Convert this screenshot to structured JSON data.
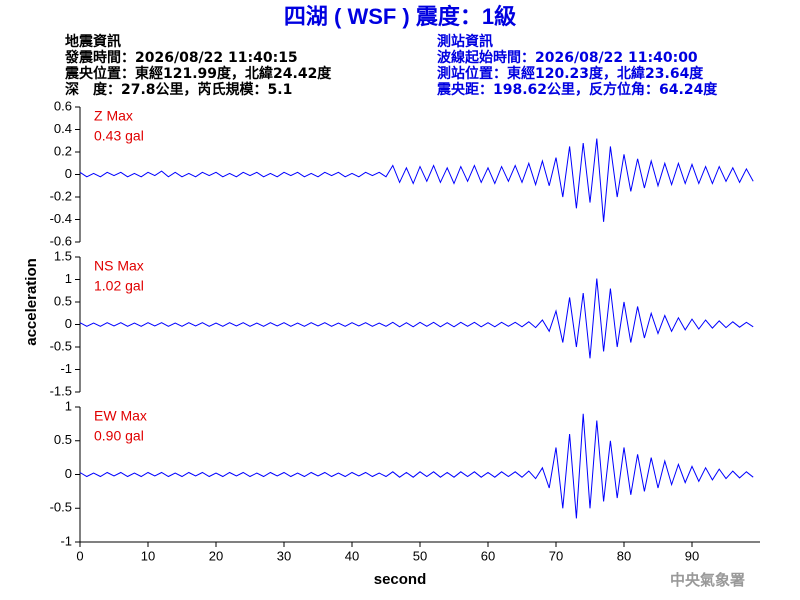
{
  "header": {
    "left": [
      "地震資訊",
      "發震時間：2026/08/22 11:40:15",
      "震央位置：東經121.99度，北緯24.42度",
      "深　度：27.8公里，芮氏規模：5.1"
    ],
    "right": [
      "測站資訊",
      "波線起始時間：2026/08/22 11:40:00",
      "測站位置：東經120.23度，北緯23.64度",
      "震央距：198.62公里，反方位角：64.24度"
    ],
    "footer": "中央氣象署"
  },
  "chart_data": {
    "type": "line",
    "title": "四湖 ( WSF ) 震度：1級",
    "xlabel": "second",
    "ylabel": "acceleration",
    "xlim": [
      0,
      100
    ],
    "xticks": [
      0,
      10,
      20,
      30,
      40,
      50,
      60,
      70,
      80,
      90
    ],
    "x": [
      0,
      1,
      2,
      3,
      4,
      5,
      6,
      7,
      8,
      9,
      10,
      11,
      12,
      13,
      14,
      15,
      16,
      17,
      18,
      19,
      20,
      21,
      22,
      23,
      24,
      25,
      26,
      27,
      28,
      29,
      30,
      31,
      32,
      33,
      34,
      35,
      36,
      37,
      38,
      39,
      40,
      41,
      42,
      43,
      44,
      45,
      46,
      47,
      48,
      49,
      50,
      51,
      52,
      53,
      54,
      55,
      56,
      57,
      58,
      59,
      60,
      61,
      62,
      63,
      64,
      65,
      66,
      67,
      68,
      69,
      70,
      71,
      72,
      73,
      74,
      75,
      76,
      77,
      78,
      79,
      80,
      81,
      82,
      83,
      84,
      85,
      86,
      87,
      88,
      89,
      90,
      91,
      92,
      93,
      94,
      95,
      96,
      97,
      98,
      99
    ],
    "series": [
      {
        "name": "Z Max",
        "annotation": "0.43 gal",
        "color": "#0000ff",
        "ylim": [
          -0.6,
          0.6
        ],
        "yticks": [
          0.6,
          0.4,
          0.2,
          0,
          -0.2,
          -0.4,
          -0.6
        ],
        "values": [
          0.02,
          -0.02,
          0.01,
          -0.02,
          0.02,
          -0.01,
          0.02,
          -0.02,
          0.01,
          -0.02,
          0.02,
          -0.01,
          0.03,
          -0.02,
          0.02,
          -0.02,
          0.01,
          -0.02,
          0.02,
          -0.01,
          0.02,
          -0.02,
          0.01,
          -0.02,
          0.02,
          -0.01,
          0.02,
          -0.02,
          0.01,
          -0.02,
          0.02,
          -0.01,
          0.02,
          -0.02,
          0.01,
          -0.02,
          0.02,
          -0.01,
          0.02,
          -0.02,
          0.01,
          -0.02,
          0.02,
          -0.01,
          0.02,
          -0.02,
          0.08,
          -0.07,
          0.06,
          -0.08,
          0.07,
          -0.06,
          0.08,
          -0.07,
          0.06,
          -0.08,
          0.07,
          -0.06,
          0.08,
          -0.07,
          0.06,
          -0.08,
          0.07,
          -0.06,
          0.08,
          -0.07,
          0.1,
          -0.09,
          0.12,
          -0.1,
          0.15,
          -0.2,
          0.25,
          -0.3,
          0.28,
          -0.25,
          0.32,
          -0.42,
          0.25,
          -0.2,
          0.18,
          -0.15,
          0.14,
          -0.12,
          0.12,
          -0.1,
          0.1,
          -0.09,
          0.1,
          -0.08,
          0.09,
          -0.08,
          0.07,
          -0.08,
          0.07,
          -0.06,
          0.06,
          -0.07,
          0.05,
          -0.06
        ]
      },
      {
        "name": "NS Max",
        "annotation": "1.02 gal",
        "color": "#0000ff",
        "ylim": [
          -1.5,
          1.5
        ],
        "yticks": [
          1.5,
          1,
          0.5,
          0,
          -0.5,
          -1,
          -1.5
        ],
        "values": [
          0.04,
          -0.04,
          0.03,
          -0.04,
          0.04,
          -0.03,
          0.04,
          -0.04,
          0.03,
          -0.04,
          0.04,
          -0.03,
          0.04,
          -0.04,
          0.03,
          -0.04,
          0.04,
          -0.03,
          0.04,
          -0.04,
          0.03,
          -0.04,
          0.04,
          -0.03,
          0.04,
          -0.04,
          0.03,
          -0.04,
          0.04,
          -0.03,
          0.04,
          -0.04,
          0.03,
          -0.04,
          0.04,
          -0.03,
          0.04,
          -0.04,
          0.03,
          -0.04,
          0.04,
          -0.03,
          0.04,
          -0.04,
          0.03,
          -0.04,
          0.05,
          -0.05,
          0.04,
          -0.05,
          0.05,
          -0.04,
          0.05,
          -0.05,
          0.04,
          -0.05,
          0.05,
          -0.04,
          0.05,
          -0.05,
          0.04,
          -0.05,
          0.05,
          -0.04,
          0.05,
          -0.05,
          0.06,
          -0.07,
          0.1,
          -0.15,
          0.3,
          -0.4,
          0.6,
          -0.5,
          0.7,
          -0.75,
          1.02,
          -0.6,
          0.8,
          -0.5,
          0.5,
          -0.4,
          0.4,
          -0.3,
          0.25,
          -0.2,
          0.2,
          -0.15,
          0.15,
          -0.12,
          0.12,
          -0.1,
          0.1,
          -0.08,
          0.08,
          -0.07,
          0.06,
          -0.06,
          0.05,
          -0.05
        ]
      },
      {
        "name": "EW Max",
        "annotation": "0.90 gal",
        "color": "#0000ff",
        "ylim": [
          -1,
          1
        ],
        "yticks": [
          1,
          0.5,
          0,
          -0.5,
          -1
        ],
        "values": [
          0.03,
          -0.03,
          0.02,
          -0.03,
          0.03,
          -0.02,
          0.03,
          -0.03,
          0.02,
          -0.03,
          0.03,
          -0.02,
          0.03,
          -0.03,
          0.02,
          -0.03,
          0.03,
          -0.02,
          0.03,
          -0.03,
          0.02,
          -0.03,
          0.03,
          -0.02,
          0.03,
          -0.03,
          0.02,
          -0.03,
          0.03,
          -0.02,
          0.03,
          -0.03,
          0.02,
          -0.03,
          0.03,
          -0.02,
          0.03,
          -0.03,
          0.02,
          -0.03,
          0.03,
          -0.02,
          0.03,
          -0.03,
          0.02,
          -0.03,
          0.04,
          -0.04,
          0.03,
          -0.04,
          0.04,
          -0.03,
          0.04,
          -0.04,
          0.03,
          -0.04,
          0.04,
          -0.03,
          0.04,
          -0.04,
          0.03,
          -0.04,
          0.04,
          -0.03,
          0.04,
          -0.04,
          0.05,
          -0.06,
          0.1,
          -0.2,
          0.4,
          -0.5,
          0.6,
          -0.65,
          0.9,
          -0.5,
          0.8,
          -0.4,
          0.5,
          -0.35,
          0.4,
          -0.3,
          0.3,
          -0.25,
          0.25,
          -0.2,
          0.2,
          -0.15,
          0.15,
          -0.12,
          0.12,
          -0.1,
          0.1,
          -0.08,
          0.08,
          -0.06,
          0.05,
          -0.05,
          0.04,
          -0.04
        ]
      }
    ]
  }
}
